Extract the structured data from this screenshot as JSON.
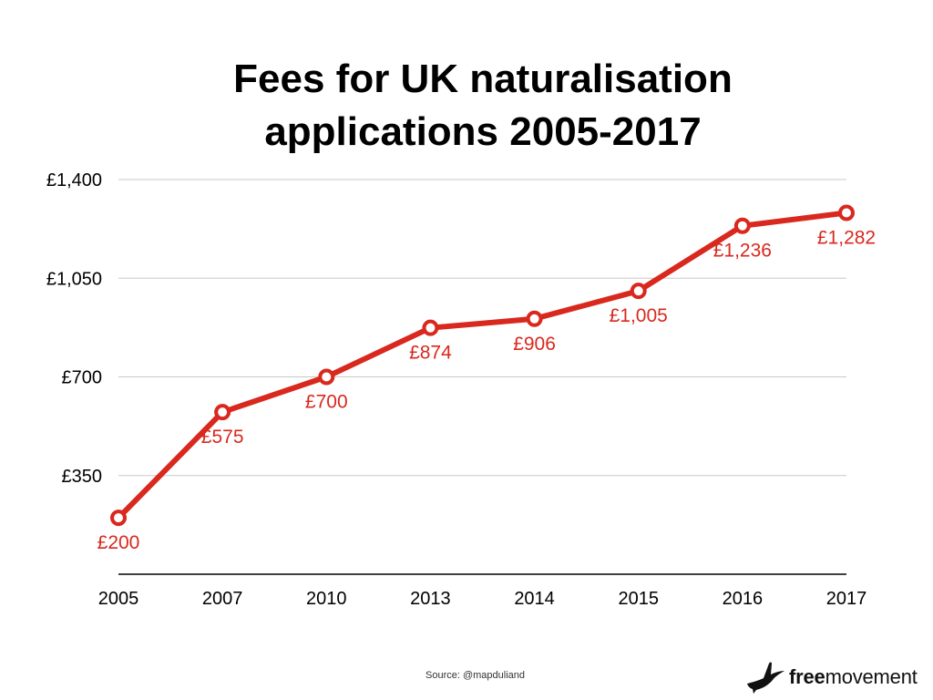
{
  "title": {
    "line1": "Fees for UK naturalisation",
    "line2": "applications 2005-2017"
  },
  "source": "Source: @mapduliand",
  "logo": {
    "bold_text": "free",
    "regular_text": "movement",
    "icon": "bird-icon"
  },
  "colors": {
    "series": "#d9281e",
    "grid": "#c8c8c8",
    "axis": "#000000",
    "text": "#000000"
  },
  "chart_data": {
    "type": "line",
    "title": "Fees for UK naturalisation applications 2005-2017",
    "xlabel": "",
    "ylabel": "",
    "categories": [
      "2005",
      "2007",
      "2010",
      "2013",
      "2014",
      "2015",
      "2016",
      "2017"
    ],
    "values": [
      200,
      575,
      700,
      874,
      906,
      1005,
      1236,
      1282
    ],
    "data_labels": [
      "£200",
      "£575",
      "£700",
      "£874",
      "£906",
      "£1,005",
      "£1,236",
      "£1,282"
    ],
    "ylim": [
      0,
      1400
    ],
    "yticks": [
      350,
      700,
      1050,
      1400
    ],
    "ytick_labels": [
      "£350",
      "£700",
      "£1,050",
      "£1,400"
    ],
    "grid": true,
    "legend": "none"
  }
}
